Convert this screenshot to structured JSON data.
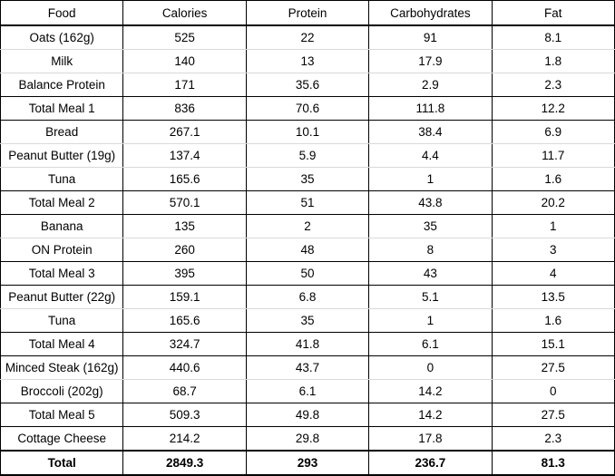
{
  "table": {
    "columns": [
      {
        "key": "food",
        "label": "Food"
      },
      {
        "key": "calories",
        "label": "Calories"
      },
      {
        "key": "protein",
        "label": "Protein"
      },
      {
        "key": "carbs",
        "label": "Carbohydrates"
      },
      {
        "key": "fat",
        "label": "Fat"
      }
    ],
    "rows": [
      {
        "food": "Oats (162g)",
        "calories": "525",
        "protein": "22",
        "carbs": "91",
        "fat": "8.1",
        "type": "item"
      },
      {
        "food": "Milk",
        "calories": "140",
        "protein": "13",
        "carbs": "17.9",
        "fat": "1.8",
        "type": "item"
      },
      {
        "food": "Balance Protein",
        "calories": "171",
        "protein": "35.6",
        "carbs": "2.9",
        "fat": "2.3",
        "type": "item"
      },
      {
        "food": "Total Meal 1",
        "calories": "836",
        "protein": "70.6",
        "carbs": "111.8",
        "fat": "12.2",
        "type": "meal-total"
      },
      {
        "food": "Bread",
        "calories": "267.1",
        "protein": "10.1",
        "carbs": "38.4",
        "fat": "6.9",
        "type": "item"
      },
      {
        "food": "Peanut Butter (19g)",
        "calories": "137.4",
        "protein": "5.9",
        "carbs": "4.4",
        "fat": "11.7",
        "type": "item"
      },
      {
        "food": "Tuna",
        "calories": "165.6",
        "protein": "35",
        "carbs": "1",
        "fat": "1.6",
        "type": "item"
      },
      {
        "food": "Total Meal 2",
        "calories": "570.1",
        "protein": "51",
        "carbs": "43.8",
        "fat": "20.2",
        "type": "meal-total"
      },
      {
        "food": "Banana",
        "calories": "135",
        "protein": "2",
        "carbs": "35",
        "fat": "1",
        "type": "item"
      },
      {
        "food": "ON Protein",
        "calories": "260",
        "protein": "48",
        "carbs": "8",
        "fat": "3",
        "type": "item"
      },
      {
        "food": "Total Meal 3",
        "calories": "395",
        "protein": "50",
        "carbs": "43",
        "fat": "4",
        "type": "meal-total"
      },
      {
        "food": "Peanut Butter (22g)",
        "calories": "159.1",
        "protein": "6.8",
        "carbs": "5.1",
        "fat": "13.5",
        "type": "item"
      },
      {
        "food": "Tuna",
        "calories": "165.6",
        "protein": "35",
        "carbs": "1",
        "fat": "1.6",
        "type": "item"
      },
      {
        "food": "Total Meal 4",
        "calories": "324.7",
        "protein": "41.8",
        "carbs": "6.1",
        "fat": "15.1",
        "type": "meal-total"
      },
      {
        "food": "Minced Steak (162g)",
        "calories": "440.6",
        "protein": "43.7",
        "carbs": "0",
        "fat": "27.5",
        "type": "item"
      },
      {
        "food": "Broccoli (202g)",
        "calories": "68.7",
        "protein": "6.1",
        "carbs": "14.2",
        "fat": "0",
        "type": "item"
      },
      {
        "food": "Total Meal 5",
        "calories": "509.3",
        "protein": "49.8",
        "carbs": "14.2",
        "fat": "27.5",
        "type": "meal-total"
      },
      {
        "food": "Cottage Cheese",
        "calories": "214.2",
        "protein": "29.8",
        "carbs": "17.8",
        "fat": "2.3",
        "type": "item"
      },
      {
        "food": "Total",
        "calories": "2849.3",
        "protein": "293",
        "carbs": "236.7",
        "fat": "81.3",
        "type": "grand-total"
      }
    ]
  },
  "colors": {
    "cell_border": "#000000",
    "gridline": "#d9d9d9",
    "text": "#000000",
    "background": "#ffffff"
  }
}
